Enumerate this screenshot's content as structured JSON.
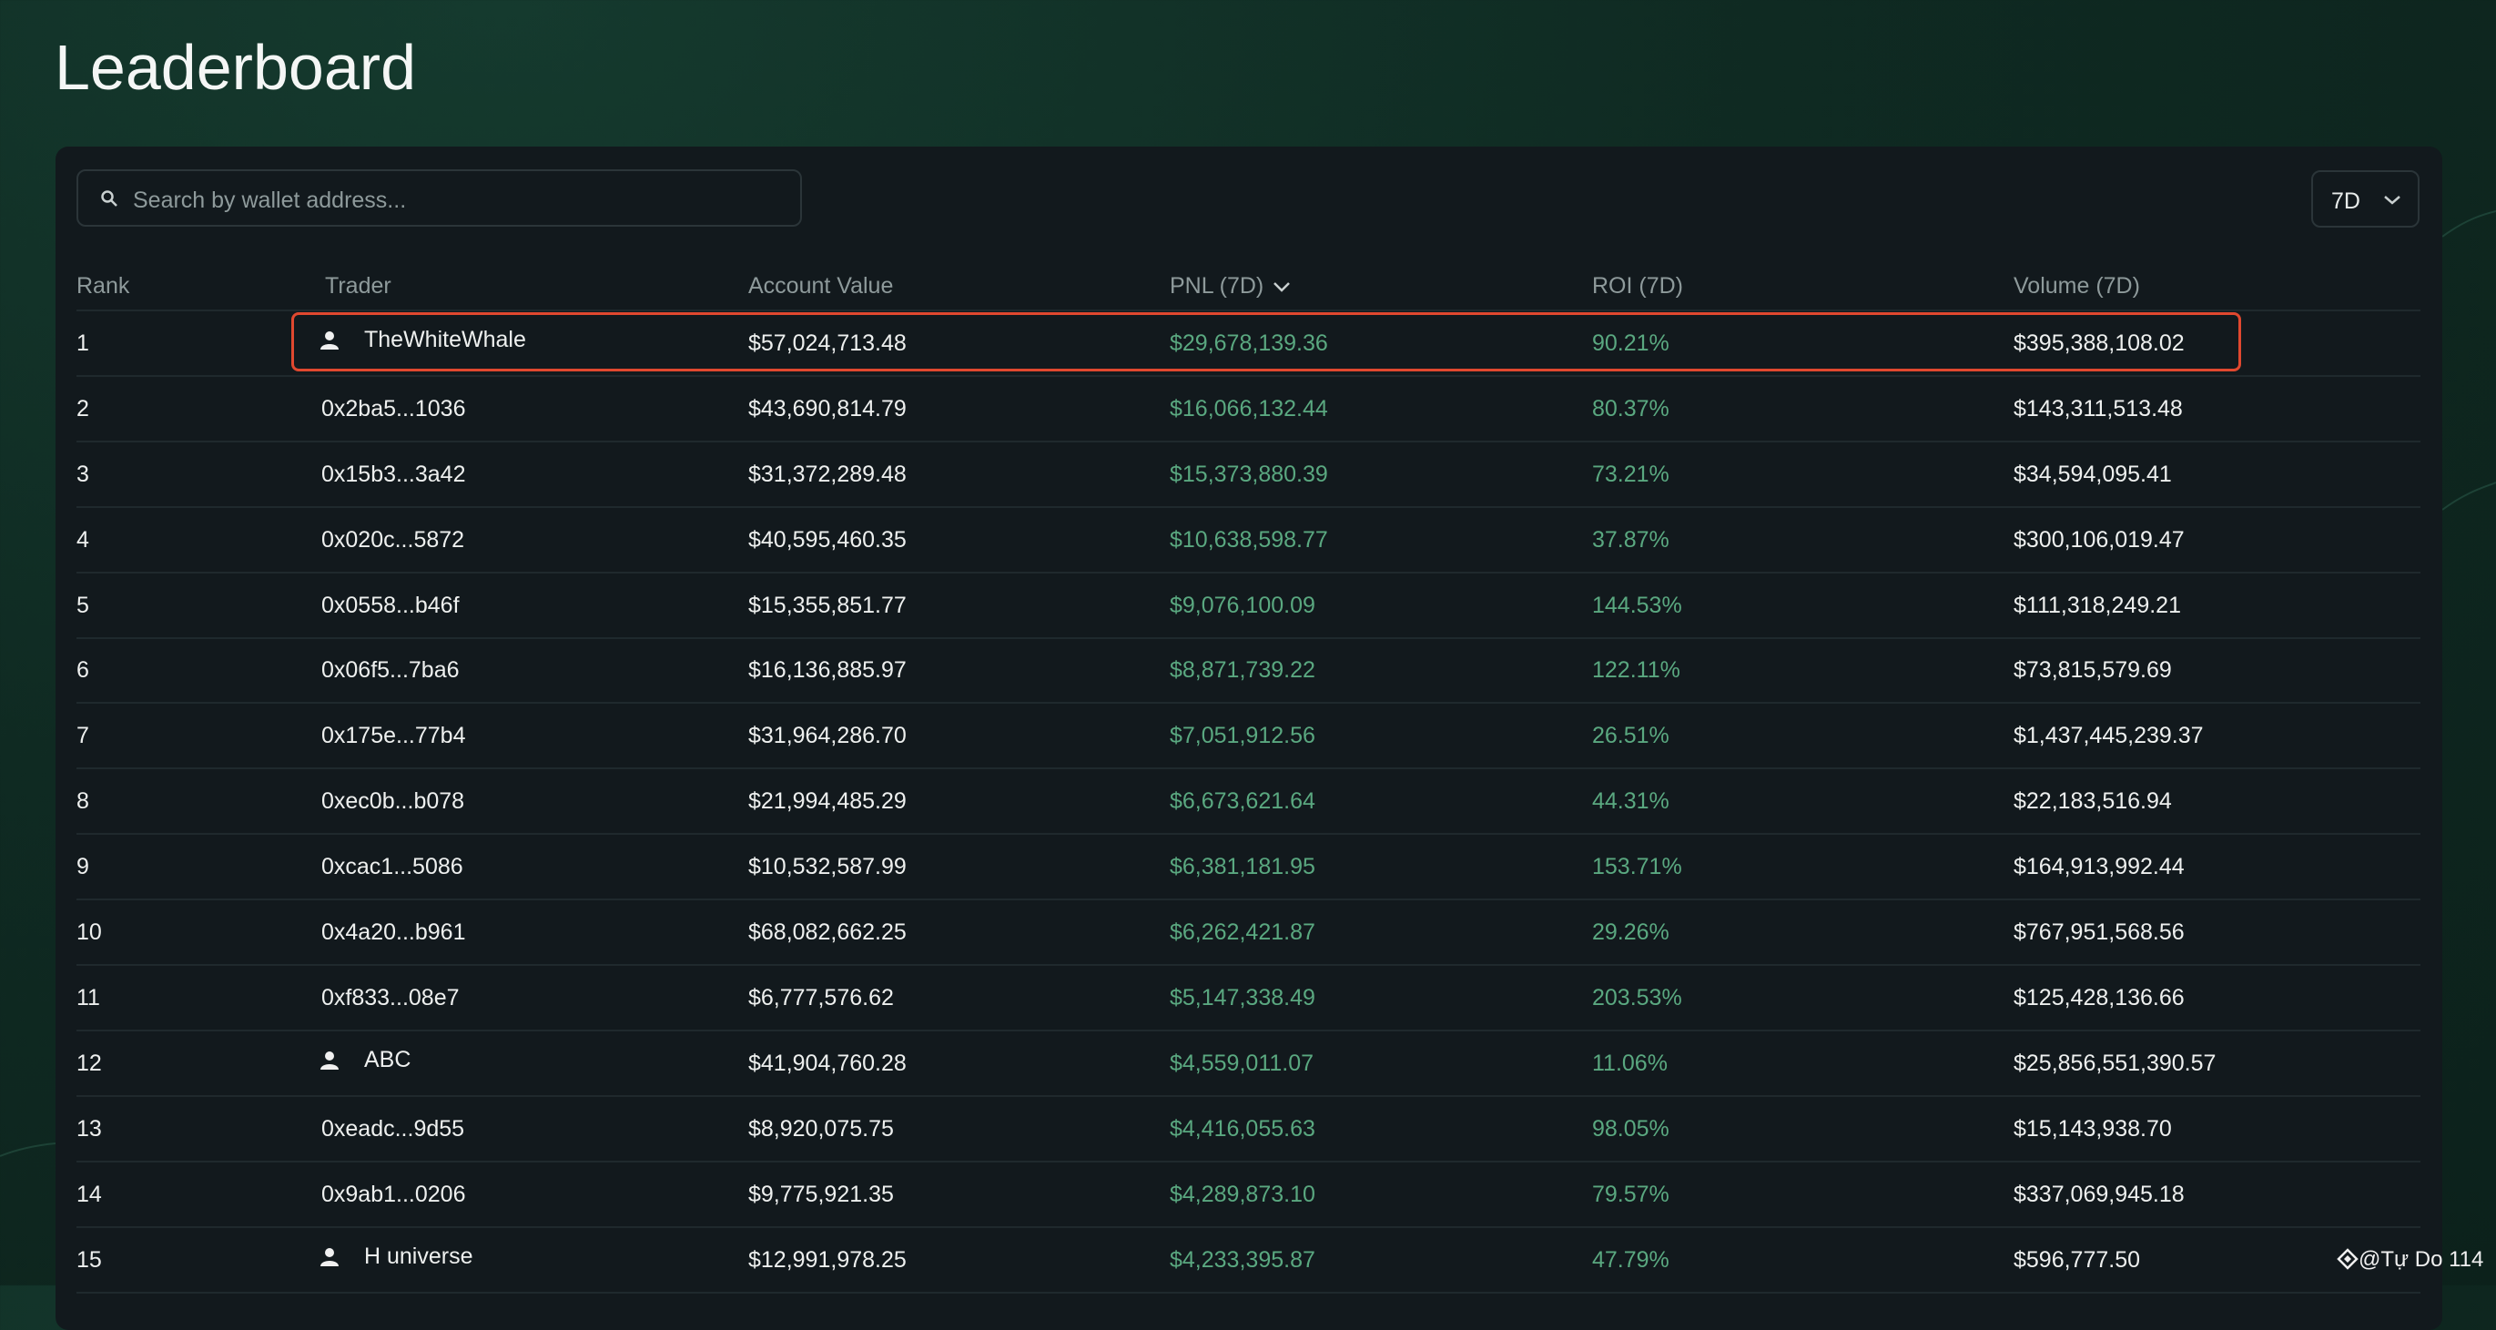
{
  "header": {
    "title": "Leaderboard"
  },
  "search": {
    "placeholder": "Search by wallet address..."
  },
  "period": {
    "label": "7D"
  },
  "table": {
    "columns": [
      "Rank",
      "Trader",
      "Account Value",
      "PNL (7D)",
      "ROI (7D)",
      "Volume (7D)"
    ],
    "rows": [
      {
        "cells": [
          "1",
          "TheWhiteWhale",
          "$57,024,713.48",
          "$29,678,139.36",
          "90.21%",
          "$395,388,108.02"
        ],
        "profile": true
      },
      {
        "cells": [
          "2",
          "0x2ba5...1036",
          "$43,690,814.79",
          "$16,066,132.44",
          "80.37%",
          "$143,311,513.48"
        ],
        "profile": false
      },
      {
        "cells": [
          "3",
          "0x15b3...3a42",
          "$31,372,289.48",
          "$15,373,880.39",
          "73.21%",
          "$34,594,095.41"
        ],
        "profile": false
      },
      {
        "cells": [
          "4",
          "0x020c...5872",
          "$40,595,460.35",
          "$10,638,598.77",
          "37.87%",
          "$300,106,019.47"
        ],
        "profile": false
      },
      {
        "cells": [
          "5",
          "0x0558...b46f",
          "$15,355,851.77",
          "$9,076,100.09",
          "144.53%",
          "$111,318,249.21"
        ],
        "profile": false
      },
      {
        "cells": [
          "6",
          "0x06f5...7ba6",
          "$16,136,885.97",
          "$8,871,739.22",
          "122.11%",
          "$73,815,579.69"
        ],
        "profile": false
      },
      {
        "cells": [
          "7",
          "0x175e...77b4",
          "$31,964,286.70",
          "$7,051,912.56",
          "26.51%",
          "$1,437,445,239.37"
        ],
        "profile": false
      },
      {
        "cells": [
          "8",
          "0xec0b...b078",
          "$21,994,485.29",
          "$6,673,621.64",
          "44.31%",
          "$22,183,516.94"
        ],
        "profile": false
      },
      {
        "cells": [
          "9",
          "0xcac1...5086",
          "$10,532,587.99",
          "$6,381,181.95",
          "153.71%",
          "$164,913,992.44"
        ],
        "profile": false
      },
      {
        "cells": [
          "10",
          "0x4a20...b961",
          "$68,082,662.25",
          "$6,262,421.87",
          "29.26%",
          "$767,951,568.56"
        ],
        "profile": false
      },
      {
        "cells": [
          "11",
          "0xf833...08e7",
          "$6,777,576.62",
          "$5,147,338.49",
          "203.53%",
          "$125,428,136.66"
        ],
        "profile": false
      },
      {
        "cells": [
          "12",
          "ABC",
          "$41,904,760.28",
          "$4,559,011.07",
          "11.06%",
          "$25,856,551,390.57"
        ],
        "profile": true
      },
      {
        "cells": [
          "13",
          "0xeadc...9d55",
          "$8,920,075.75",
          "$4,416,055.63",
          "98.05%",
          "$15,143,938.70"
        ],
        "profile": false
      },
      {
        "cells": [
          "14",
          "0x9ab1...0206",
          "$9,775,921.35",
          "$4,289,873.10",
          "79.57%",
          "$337,069,945.18"
        ],
        "profile": false
      },
      {
        "cells": [
          "15",
          "H universe",
          "$12,991,978.25",
          "$4,233,395.87",
          "47.79%",
          "$596,777.50"
        ],
        "profile": true
      }
    ]
  },
  "watermark": {
    "text": "@Tự Do 114"
  }
}
